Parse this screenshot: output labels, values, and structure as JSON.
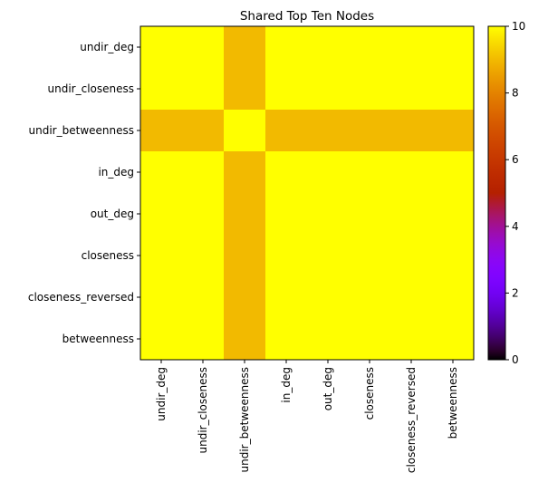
{
  "chart_data": {
    "type": "heatmap",
    "title": "Shared Top Ten Nodes",
    "xlabel": "",
    "ylabel": "",
    "rows": [
      "undir_deg",
      "undir_closeness",
      "undir_betweenness",
      "in_deg",
      "out_deg",
      "closeness",
      "closeness_reversed",
      "betweenness"
    ],
    "columns": [
      "undir_deg",
      "undir_closeness",
      "undir_betweenness",
      "in_deg",
      "out_deg",
      "closeness",
      "closeness_reversed",
      "betweenness"
    ],
    "values": [
      [
        10,
        10,
        9,
        10,
        10,
        10,
        10,
        10
      ],
      [
        10,
        10,
        9,
        10,
        10,
        10,
        10,
        10
      ],
      [
        9,
        9,
        10,
        9,
        9,
        9,
        9,
        9
      ],
      [
        10,
        10,
        9,
        10,
        10,
        10,
        10,
        10
      ],
      [
        10,
        10,
        9,
        10,
        10,
        10,
        10,
        10
      ],
      [
        10,
        10,
        9,
        10,
        10,
        10,
        10,
        10
      ],
      [
        10,
        10,
        9,
        10,
        10,
        10,
        10,
        10
      ],
      [
        10,
        10,
        9,
        10,
        10,
        10,
        10,
        10
      ]
    ],
    "colorbar": {
      "range": [
        0,
        10
      ],
      "ticks": [
        "0",
        "2",
        "4",
        "6",
        "8",
        "10"
      ],
      "colormap": "gnuplot"
    }
  }
}
